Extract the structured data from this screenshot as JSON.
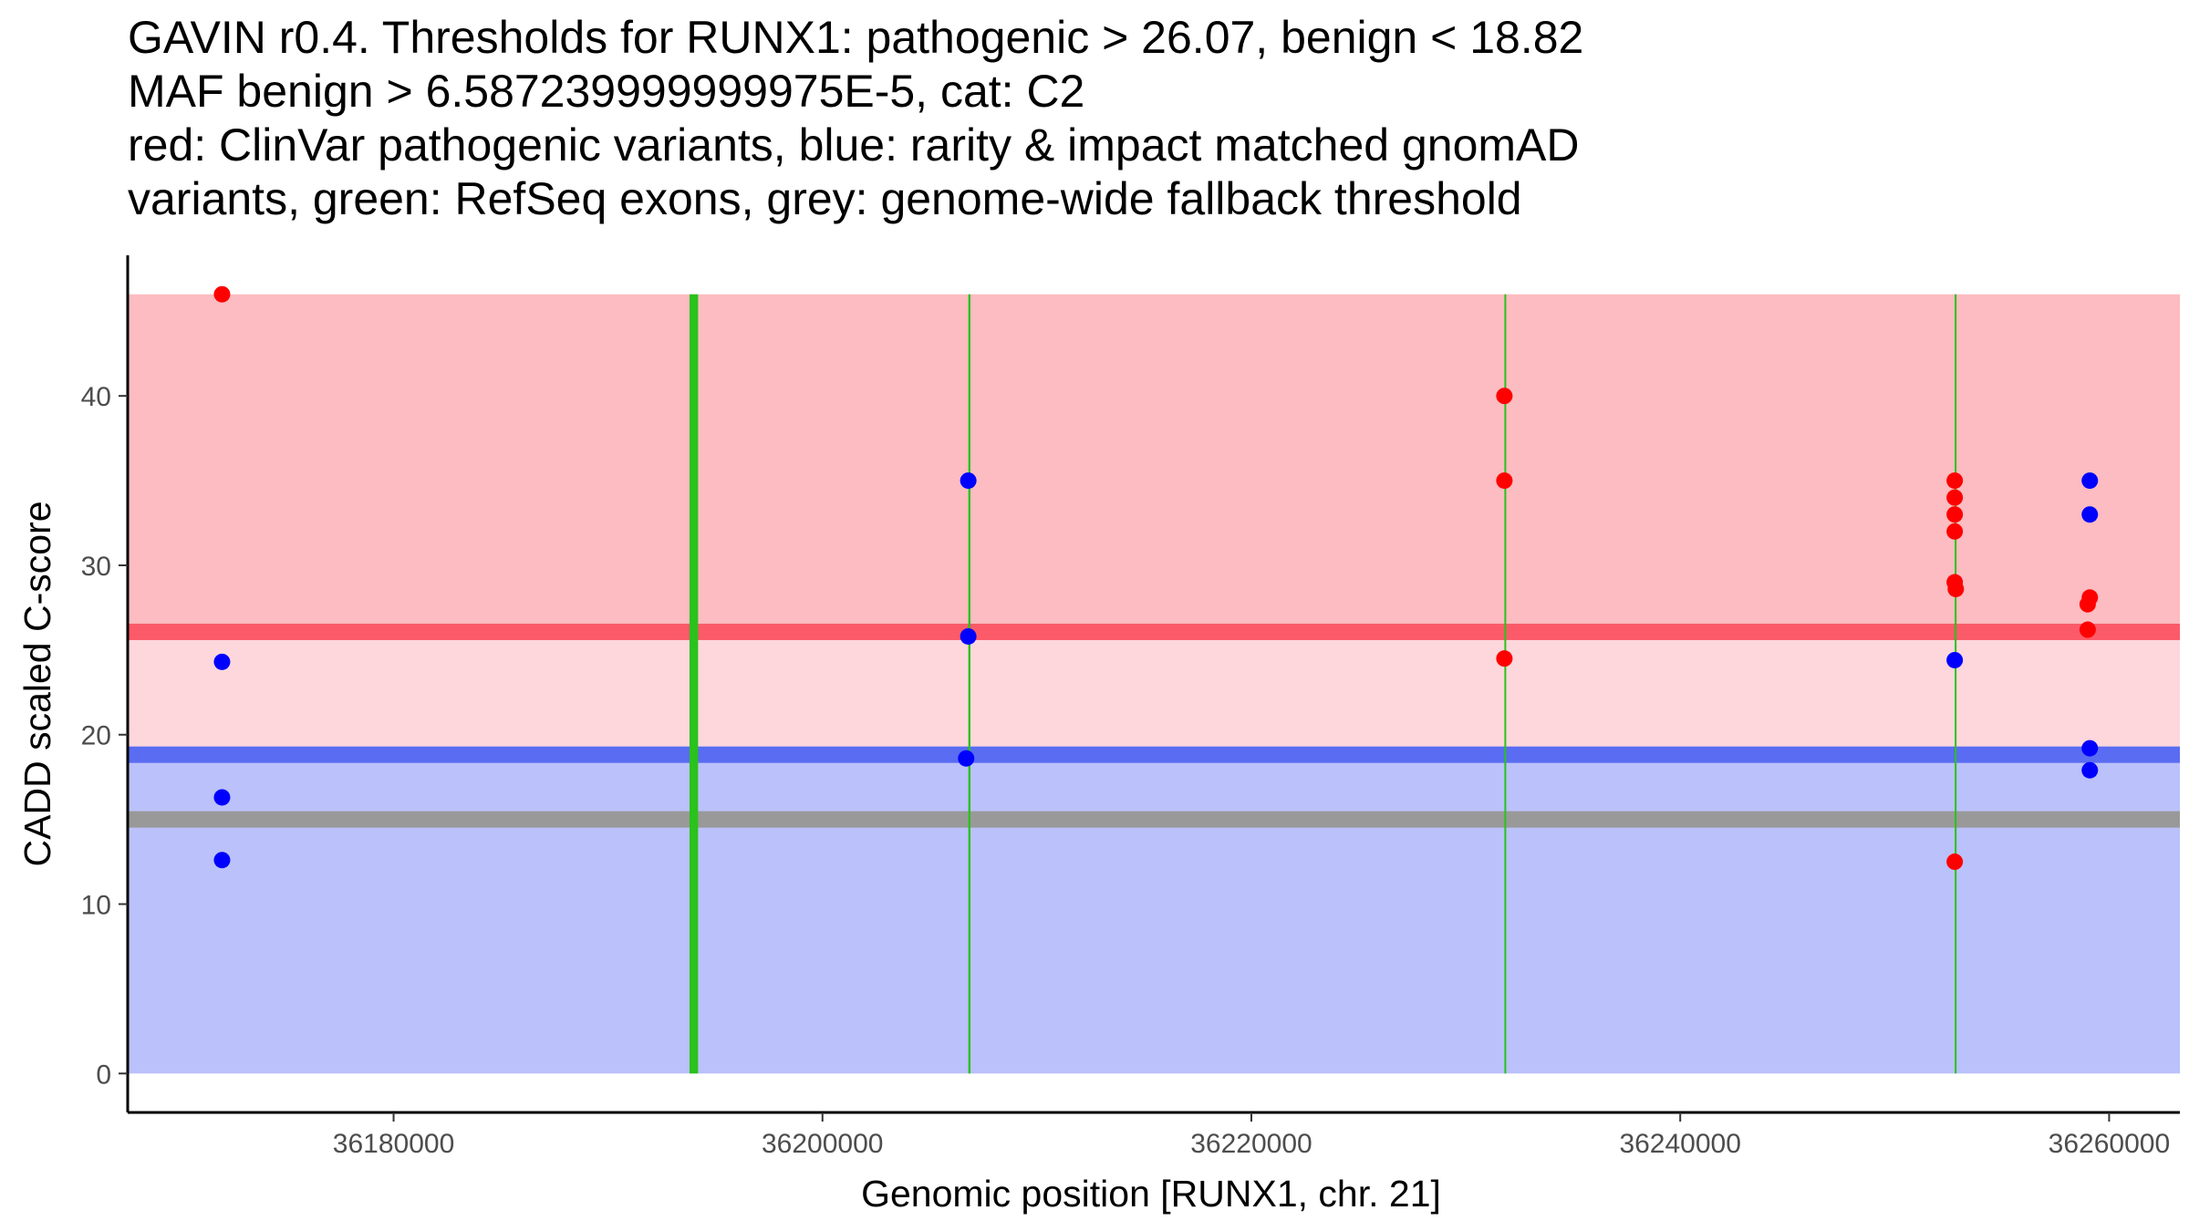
{
  "title": {
    "line1": "GAVIN r0.4. Thresholds for RUNX1: pathogenic > 26.07, benign < 18.82",
    "line2": "MAF benign > 6.587239999999975E-5, cat: C2",
    "line3": "red: ClinVar pathogenic variants, blue: rarity & impact matched gnomAD",
    "line4": "variants, green: RefSeq exons, grey: genome-wide fallback threshold"
  },
  "colors": {
    "pathogenic_zone": "#fcbcc1",
    "mid_zone": "#fdd7dc",
    "benign_zone": "#bbc1fa",
    "pathogenic_line": "#fb5b69",
    "benign_line": "#5a6cf1",
    "fallback_line": "#999999",
    "exon": "#2ac21c",
    "pathogenic_point": "#ff0000",
    "benign_point": "#0000ff"
  },
  "chart_data": {
    "type": "scatter",
    "title": "GAVIN r0.4. Thresholds for RUNX1: pathogenic > 26.07, benign < 18.82",
    "xlabel": "Genomic position [RUNX1, chr. 21]",
    "ylabel": "CADD scaled C-score",
    "xlim": [
      36167600,
      36263300
    ],
    "ylim": [
      -2.3,
      48.3
    ],
    "xticks": [
      36180000,
      36200000,
      36220000,
      36240000,
      36260000
    ],
    "xtick_labels": [
      "36180000",
      "36200000",
      "36220000",
      "36240000",
      "36260000"
    ],
    "yticks": [
      0,
      10,
      20,
      30,
      40
    ],
    "ytick_labels": [
      "0",
      "10",
      "20",
      "30",
      "40"
    ],
    "bands": [
      {
        "name": "benign",
        "y0": 0,
        "y1": 18.82
      },
      {
        "name": "intermediate",
        "y0": 18.82,
        "y1": 26.07
      },
      {
        "name": "pathogenic",
        "y0": 26.07,
        "y1": 46
      },
      {
        "x0": 36167600,
        "x1": 36263300
      }
    ],
    "thresholds": [
      {
        "name": "pathogenic",
        "value": 26.07
      },
      {
        "name": "benign",
        "value": 18.82
      },
      {
        "name": "fallback",
        "value": 15.0
      }
    ],
    "exons": [
      {
        "x0": 36193800,
        "x1": 36194200
      },
      {
        "x0": 36206800,
        "x1": 36206900
      },
      {
        "x0": 36231800,
        "x1": 36231820
      },
      {
        "x0": 36252800,
        "x1": 36252830
      }
    ],
    "series": [
      {
        "name": "ClinVar pathogenic variants",
        "color": "pathogenic_point",
        "points": [
          {
            "x": 36172000,
            "y": 46.0
          },
          {
            "x": 36231800,
            "y": 40.0
          },
          {
            "x": 36231800,
            "y": 35.0
          },
          {
            "x": 36231800,
            "y": 24.5
          },
          {
            "x": 36252800,
            "y": 35.0
          },
          {
            "x": 36252800,
            "y": 34.0
          },
          {
            "x": 36252800,
            "y": 33.0
          },
          {
            "x": 36252800,
            "y": 32.0
          },
          {
            "x": 36252800,
            "y": 29.0
          },
          {
            "x": 36252850,
            "y": 28.6
          },
          {
            "x": 36252800,
            "y": 12.5
          },
          {
            "x": 36259100,
            "y": 28.1
          },
          {
            "x": 36259000,
            "y": 27.7
          },
          {
            "x": 36259000,
            "y": 26.2
          }
        ]
      },
      {
        "name": "rarity & impact matched gnomAD variants",
        "color": "benign_point",
        "points": [
          {
            "x": 36172000,
            "y": 24.3
          },
          {
            "x": 36172000,
            "y": 16.3
          },
          {
            "x": 36172000,
            "y": 12.6
          },
          {
            "x": 36206800,
            "y": 35.0
          },
          {
            "x": 36206800,
            "y": 25.8
          },
          {
            "x": 36206700,
            "y": 18.6
          },
          {
            "x": 36252800,
            "y": 24.4
          },
          {
            "x": 36259100,
            "y": 35.0
          },
          {
            "x": 36259100,
            "y": 33.0
          },
          {
            "x": 36259100,
            "y": 19.2
          },
          {
            "x": 36259100,
            "y": 17.9
          }
        ]
      }
    ]
  }
}
